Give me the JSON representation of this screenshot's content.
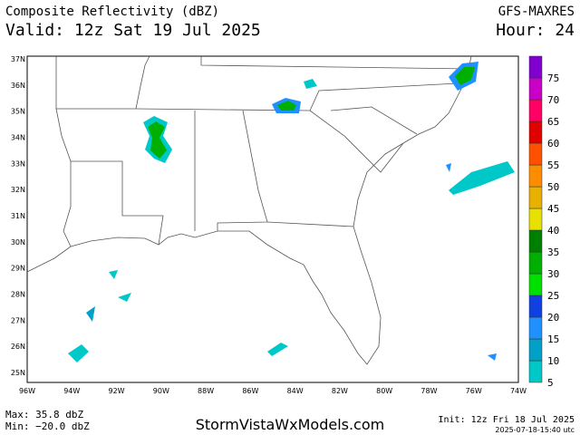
{
  "header": {
    "title": "Composite Reflectivity (dBZ)",
    "valid": "Valid: 12z Sat 19 Jul 2025",
    "model": "GFS-MAXRES",
    "hour": "Hour: 24"
  },
  "lat_labels": [
    "37N",
    "36N",
    "35N",
    "34N",
    "33N",
    "32N",
    "31N",
    "30N",
    "29N",
    "28N",
    "27N",
    "26N",
    "25N"
  ],
  "lon_labels": [
    "96W",
    "94W",
    "92W",
    "90W",
    "88W",
    "86W",
    "84W",
    "82W",
    "80W",
    "78W",
    "76W",
    "74W"
  ],
  "colorbar": {
    "levels": [
      5,
      10,
      15,
      20,
      25,
      30,
      35,
      40,
      45,
      50,
      55,
      60,
      65,
      70,
      75
    ],
    "colors": [
      "#00c8c8",
      "#00a0c8",
      "#2090ff",
      "#1040e0",
      "#00e000",
      "#00b000",
      "#008000",
      "#e8e000",
      "#e8b000",
      "#ff8c00",
      "#ff5000",
      "#e00000",
      "#ff0064",
      "#c800c8",
      "#8000d0"
    ]
  },
  "footer": {
    "max": "Max: 35.8 dbZ",
    "min": "Min: −20.0 dbZ",
    "site": "StormVistaWxModels.com",
    "init": "Init: 12z Fri 18 Jul 2025",
    "timestamp": "2025-07-18-15:40 utc"
  }
}
